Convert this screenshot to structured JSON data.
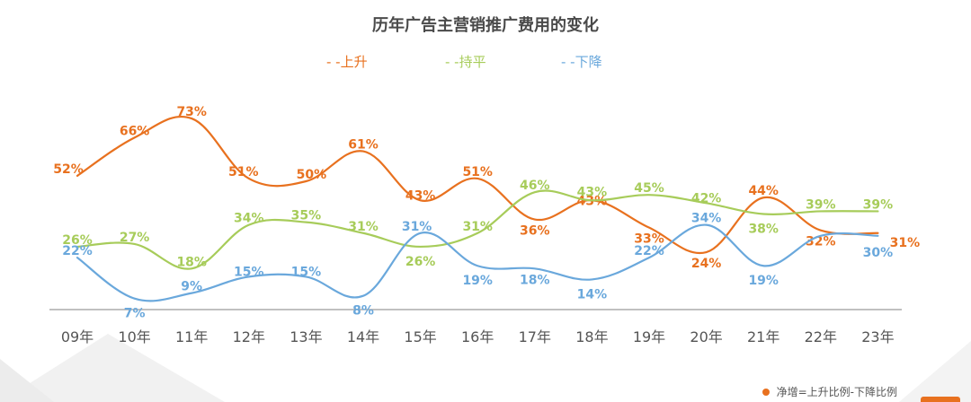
{
  "title": "历年广告主营销推广费用的变化",
  "note": "净增=上升比例-下降比例",
  "colors": {
    "up": "#e8711f",
    "flat": "#a7cc5a",
    "down": "#6aa8dc",
    "axis": "#9a9a9a",
    "note_dot": "#e8711f"
  },
  "chart_data": {
    "type": "line",
    "title": "历年广告主营销推广费用的变化",
    "categories": [
      "09年",
      "10年",
      "11年",
      "12年",
      "13年",
      "14年",
      "15年",
      "16年",
      "17年",
      "18年",
      "19年",
      "20年",
      "21年",
      "22年",
      "23年"
    ],
    "series": [
      {
        "name": "上升",
        "legend_label": "- -上升",
        "values": [
          52,
          66,
          73,
          51,
          50,
          61,
          43,
          51,
          36,
          43,
          33,
          24,
          44,
          32,
          31
        ],
        "labels": [
          "52%",
          "66%",
          "73%",
          "51%",
          "50%",
          "61%",
          "43%",
          "51%",
          "36%",
          "43%",
          "33%",
          "24%",
          "44%",
          "32%",
          "31%"
        ]
      },
      {
        "name": "持平",
        "legend_label": "- -持平",
        "values": [
          26,
          27,
          18,
          34,
          35,
          31,
          26,
          31,
          46,
          43,
          45,
          42,
          38,
          39,
          39
        ],
        "labels": [
          "26%",
          "27%",
          "18%",
          "34%",
          "35%",
          "31%",
          "26%",
          "31%",
          "46%",
          "43%",
          "45%",
          "42%",
          "38%",
          "39%",
          "39%"
        ]
      },
      {
        "name": "下降",
        "legend_label": "- -下降",
        "values": [
          22,
          7,
          9,
          15,
          15,
          8,
          31,
          19,
          18,
          14,
          22,
          34,
          19,
          30,
          30
        ],
        "labels": [
          "22%",
          "7%",
          "9%",
          "15%",
          "15%",
          "8%",
          "31%",
          "19%",
          "18%",
          "14%",
          "22%",
          "34%",
          "19%",
          "",
          "30%"
        ]
      }
    ],
    "legend_position": "top",
    "grid": false
  }
}
